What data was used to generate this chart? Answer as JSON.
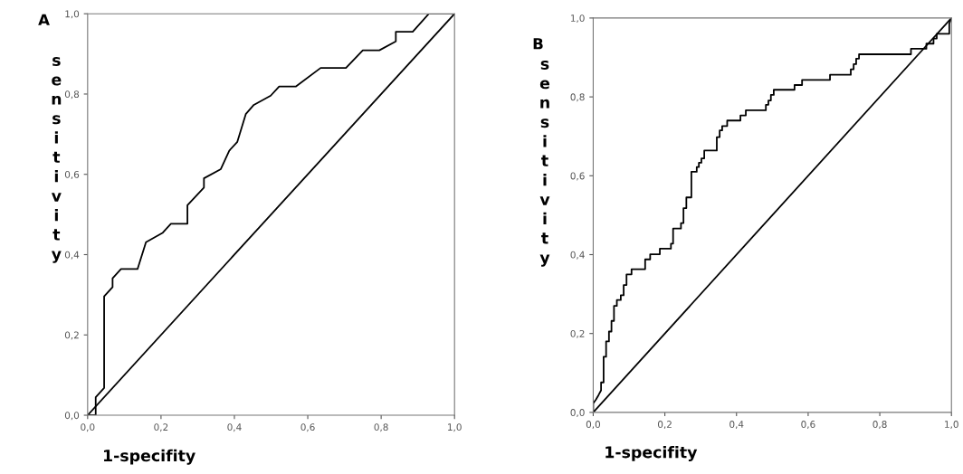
{
  "chart_data": [
    {
      "type": "line",
      "title": "A",
      "xlabel": "1-specifity",
      "ylabel": "sensitivity",
      "xlim": [
        0,
        1
      ],
      "ylim": [
        0,
        1
      ],
      "xticks": [
        {
          "value": 0,
          "label": "0,0"
        },
        {
          "value": 0.2,
          "label": "0,2"
        },
        {
          "value": 0.4,
          "label": "0,4"
        },
        {
          "value": 0.6,
          "label": "0,6"
        },
        {
          "value": 0.8,
          "label": "0,8"
        },
        {
          "value": 1,
          "label": "1,0"
        }
      ],
      "yticks": [
        {
          "value": 0,
          "label": "0,0"
        },
        {
          "value": 0.2,
          "label": "0,2"
        },
        {
          "value": 0.4,
          "label": "0,4"
        },
        {
          "value": 0.6,
          "label": "0,6"
        },
        {
          "value": 0.8,
          "label": "0,8"
        },
        {
          "value": 1,
          "label": "1,0"
        }
      ],
      "grid": false,
      "marker": "none",
      "line_style": "solid",
      "series": [
        {
          "color": "#000000",
          "x": [
            0,
            0.022,
            0.022,
            0.045,
            0.045,
            0.068,
            0.068,
            0.091,
            0.136,
            0.159,
            0.204,
            0.227,
            0.272,
            0.272,
            0.317,
            0.317,
            0.363,
            0.386,
            0.408,
            0.431,
            0.453,
            0.499,
            0.522,
            0.568,
            0.635,
            0.704,
            0.75,
            0.795,
            0.84,
            0.84,
            0.886,
            0.93,
            1
          ],
          "values": [
            0,
            0,
            0.045,
            0.068,
            0.296,
            0.319,
            0.341,
            0.364,
            0.364,
            0.431,
            0.454,
            0.477,
            0.477,
            0.523,
            0.567,
            0.59,
            0.613,
            0.659,
            0.681,
            0.75,
            0.773,
            0.796,
            0.819,
            0.819,
            0.865,
            0.865,
            0.909,
            0.909,
            0.931,
            0.955,
            0.955,
            1,
            1
          ]
        },
        {
          "color": "#000000",
          "x": [
            0,
            1
          ],
          "values": [
            0,
            1
          ]
        }
      ]
    },
    {
      "type": "line",
      "title": "B",
      "xlabel": "1-specifity",
      "ylabel": "sensitivity",
      "xlim": [
        0,
        1
      ],
      "ylim": [
        0,
        1
      ],
      "xticks": [
        {
          "value": 0,
          "label": "0,0"
        },
        {
          "value": 0.2,
          "label": "0,2"
        },
        {
          "value": 0.4,
          "label": "0,4"
        },
        {
          "value": 0.6,
          "label": "0,6"
        },
        {
          "value": 0.8,
          "label": "0,8"
        },
        {
          "value": 1,
          "label": "1,0"
        }
      ],
      "yticks": [
        {
          "value": 0,
          "label": "0,0"
        },
        {
          "value": 0.2,
          "label": "0,2"
        },
        {
          "value": 0.4,
          "label": "0,4"
        },
        {
          "value": 0.6,
          "label": "0,6"
        },
        {
          "value": 0.8,
          "label": "0,8"
        },
        {
          "value": 1,
          "label": "1,0"
        }
      ],
      "grid": false,
      "marker": "none",
      "line_style": "solid",
      "series": [
        {
          "color": "#000000",
          "x": [
            0,
            0,
            0.008,
            0.015,
            0.022,
            0.022,
            0.029,
            0.029,
            0.036,
            0.036,
            0.044,
            0.044,
            0.051,
            0.051,
            0.058,
            0.058,
            0.066,
            0.066,
            0.077,
            0.077,
            0.085,
            0.085,
            0.093,
            0.093,
            0.107,
            0.107,
            0.145,
            0.145,
            0.159,
            0.159,
            0.186,
            0.186,
            0.217,
            0.217,
            0.223,
            0.223,
            0.245,
            0.245,
            0.252,
            0.252,
            0.26,
            0.26,
            0.274,
            0.274,
            0.289,
            0.289,
            0.295,
            0.295,
            0.302,
            0.302,
            0.31,
            0.31,
            0.345,
            0.345,
            0.353,
            0.353,
            0.36,
            0.36,
            0.374,
            0.374,
            0.411,
            0.411,
            0.426,
            0.426,
            0.482,
            0.482,
            0.489,
            0.489,
            0.496,
            0.496,
            0.504,
            0.504,
            0.562,
            0.562,
            0.583,
            0.583,
            0.661,
            0.661,
            0.719,
            0.719,
            0.727,
            0.727,
            0.734,
            0.734,
            0.742,
            0.742,
            0.887,
            0.887,
            0.93,
            0.93,
            0.95,
            0.95,
            0.959,
            0.959,
            0.994,
            0.994,
            1
          ],
          "values": [
            0,
            0.023,
            0.033,
            0.044,
            0.056,
            0.076,
            0.076,
            0.141,
            0.141,
            0.18,
            0.18,
            0.205,
            0.205,
            0.232,
            0.232,
            0.27,
            0.27,
            0.285,
            0.285,
            0.297,
            0.297,
            0.323,
            0.323,
            0.35,
            0.35,
            0.363,
            0.363,
            0.388,
            0.388,
            0.401,
            0.401,
            0.415,
            0.415,
            0.428,
            0.428,
            0.466,
            0.466,
            0.48,
            0.48,
            0.518,
            0.518,
            0.545,
            0.545,
            0.61,
            0.61,
            0.622,
            0.622,
            0.633,
            0.633,
            0.644,
            0.644,
            0.664,
            0.664,
            0.698,
            0.698,
            0.715,
            0.715,
            0.726,
            0.726,
            0.74,
            0.74,
            0.753,
            0.753,
            0.766,
            0.766,
            0.78,
            0.78,
            0.791,
            0.791,
            0.805,
            0.805,
            0.818,
            0.818,
            0.83,
            0.83,
            0.843,
            0.843,
            0.856,
            0.856,
            0.87,
            0.87,
            0.883,
            0.883,
            0.897,
            0.897,
            0.908,
            0.908,
            0.922,
            0.922,
            0.935,
            0.935,
            0.948,
            0.948,
            0.96,
            0.96,
            0.986,
            1
          ]
        },
        {
          "color": "#000000",
          "x": [
            0,
            1
          ],
          "values": [
            0,
            1
          ]
        }
      ]
    }
  ]
}
